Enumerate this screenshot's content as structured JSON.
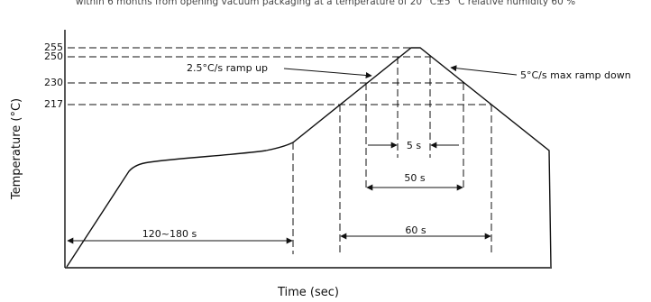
{
  "header_text": "within 6 months from opening vacuum packaging at a temperature of 20 °C±5 °C relative humidity 60 %",
  "chart_data": {
    "type": "line",
    "title": "",
    "xlabel": "Time (sec)",
    "ylabel": "Temperature (°C)",
    "y_ticks": [
      "255",
      "250",
      "230",
      "217"
    ],
    "annotations": {
      "ramp_up": "2.5°C/s ramp up",
      "ramp_down": "5°C/s max ramp down",
      "preheat_time": "120~180 s",
      "peak_time": "5 s",
      "above_230_time": "50 s",
      "above_217_time": "60 s"
    }
  }
}
